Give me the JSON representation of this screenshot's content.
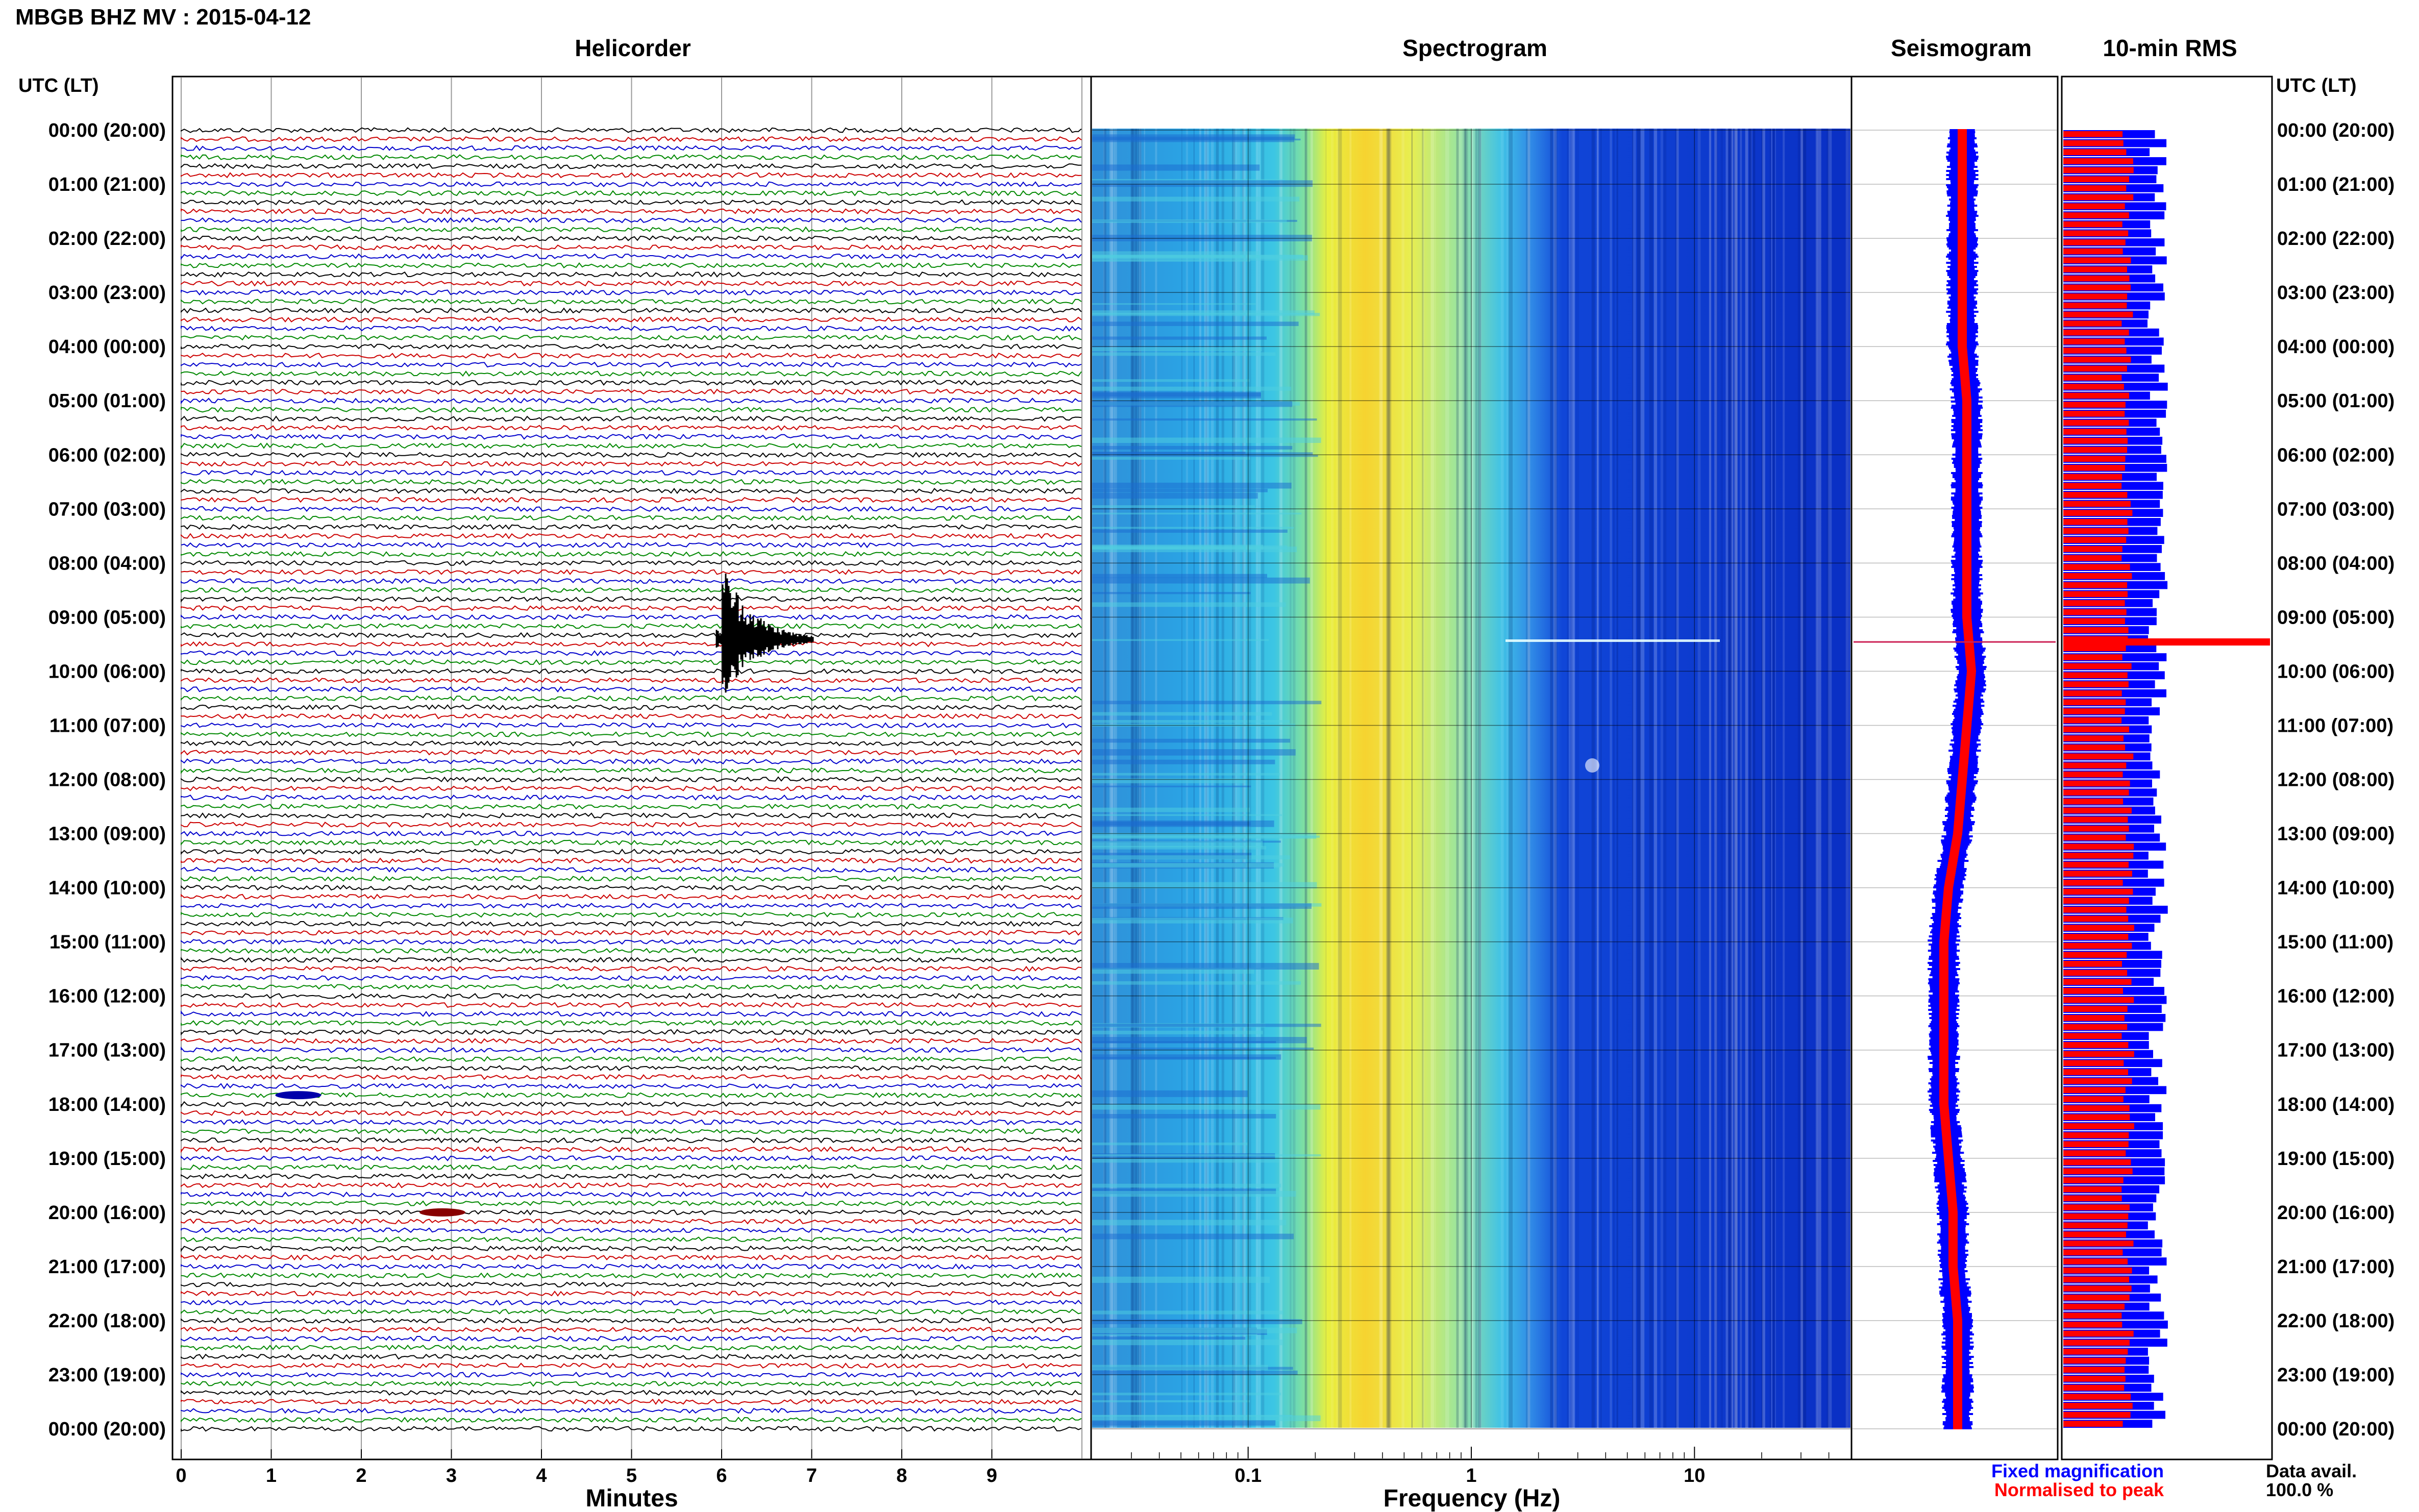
{
  "header": {
    "title": "MBGB BHZ MV : 2015-04-12"
  },
  "panels": {
    "helicorder_title": "Helicorder",
    "spectrogram_title": "Spectrogram",
    "seismogram_title": "Seismogram",
    "rms_title": "10-min RMS"
  },
  "axes": {
    "time_header_left": "UTC (LT)",
    "time_header_right": "UTC (LT)",
    "time_labels": [
      "00:00 (20:00)",
      "01:00 (21:00)",
      "02:00 (22:00)",
      "03:00 (23:00)",
      "04:00 (00:00)",
      "05:00 (01:00)",
      "06:00 (02:00)",
      "07:00 (03:00)",
      "08:00 (04:00)",
      "09:00 (05:00)",
      "10:00 (06:00)",
      "11:00 (07:00)",
      "12:00 (08:00)",
      "13:00 (09:00)",
      "14:00 (10:00)",
      "15:00 (11:00)",
      "16:00 (12:00)",
      "17:00 (13:00)",
      "18:00 (14:00)",
      "19:00 (15:00)",
      "20:00 (16:00)",
      "21:00 (17:00)",
      "22:00 (18:00)",
      "23:00 (19:00)",
      "00:00 (20:00)"
    ],
    "minutes_label": "Minutes",
    "minutes_ticks": [
      "0",
      "1",
      "2",
      "3",
      "4",
      "5",
      "6",
      "7",
      "8",
      "9"
    ],
    "frequency_label": "Frequency (Hz)",
    "frequency_ticks": [
      "0.1",
      "1",
      "10"
    ]
  },
  "legend": {
    "fixed": "Fixed magnification",
    "normalised": "Normalised to peak"
  },
  "footer": {
    "data_avail_label": "Data avail.",
    "data_avail_value": "100.0 %"
  },
  "colors": {
    "trace_colors": [
      "#000000",
      "#cc0000",
      "#0000cc",
      "#008800"
    ],
    "fixed": "#0000ff",
    "normalised": "#ff0000"
  },
  "chart_data": [
    {
      "type": "line",
      "panel": "Helicorder",
      "xlabel": "Minutes",
      "xlim": [
        0,
        10
      ],
      "rows_per_hour": 6,
      "hours": 24,
      "events": [
        {
          "utc": "09:00",
          "minute": 6.0
        },
        {
          "utc": "17:50",
          "minute": 1.3
        },
        {
          "utc": "20:00",
          "minute": 2.9
        }
      ]
    },
    {
      "type": "heatmap",
      "panel": "Spectrogram",
      "xlabel": "Frequency (Hz)",
      "xscale": "log",
      "xlim": [
        0.02,
        50
      ],
      "peak_band_hz": [
        0.2,
        0.6
      ]
    },
    {
      "type": "line",
      "panel": "Seismogram",
      "series": [
        {
          "name": "Fixed magnification",
          "values": [
            1,
            1,
            1,
            1,
            1,
            1.05,
            1.05,
            1.05,
            1.05,
            1.05,
            1.1,
            1.05,
            1,
            0.95,
            0.85,
            0.8,
            0.8,
            0.8,
            0.8,
            0.85,
            0.9,
            0.9,
            0.95,
            0.95,
            0.95
          ]
        },
        {
          "name": "Normalised to peak",
          "values": [
            1,
            1,
            1,
            1,
            1,
            1.05,
            1.05,
            1.05,
            1.05,
            1.05,
            1.1,
            1.05,
            1,
            0.95,
            0.85,
            0.8,
            0.8,
            0.8,
            0.8,
            0.85,
            0.9,
            0.9,
            0.95,
            0.95,
            0.95
          ]
        }
      ]
    },
    {
      "type": "bar",
      "panel": "10-min RMS",
      "series": [
        {
          "name": "Fixed magnification",
          "values": [
            1,
            1,
            1,
            1,
            1,
            1,
            1,
            1,
            1,
            1,
            1,
            1,
            1,
            1,
            1,
            1,
            1,
            1,
            1,
            1,
            1,
            1,
            1,
            1
          ]
        },
        {
          "name": "Normalised to peak",
          "values": [
            0.55,
            0.55,
            0.55,
            0.55,
            0.55,
            0.55,
            0.55,
            0.55,
            0.55,
            0.55,
            0.55,
            0.55,
            0.55,
            0.55,
            0.55,
            0.55,
            0.55,
            0.55,
            0.55,
            0.55,
            0.55,
            0.55,
            0.55,
            0.55
          ]
        }
      ]
    }
  ]
}
